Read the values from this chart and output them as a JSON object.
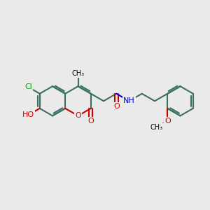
{
  "bg_color": "#eaeaea",
  "bond_color": "#3a7060",
  "red_color": "#cc0000",
  "blue_color": "#0000cc",
  "green_color": "#00aa00",
  "bond_width": 1.5,
  "figsize": [
    3.0,
    3.0
  ],
  "dpi": 100,
  "xlim": [
    -0.5,
    10.5
  ],
  "ylim": [
    1.5,
    8.5
  ],
  "bl": 0.78
}
